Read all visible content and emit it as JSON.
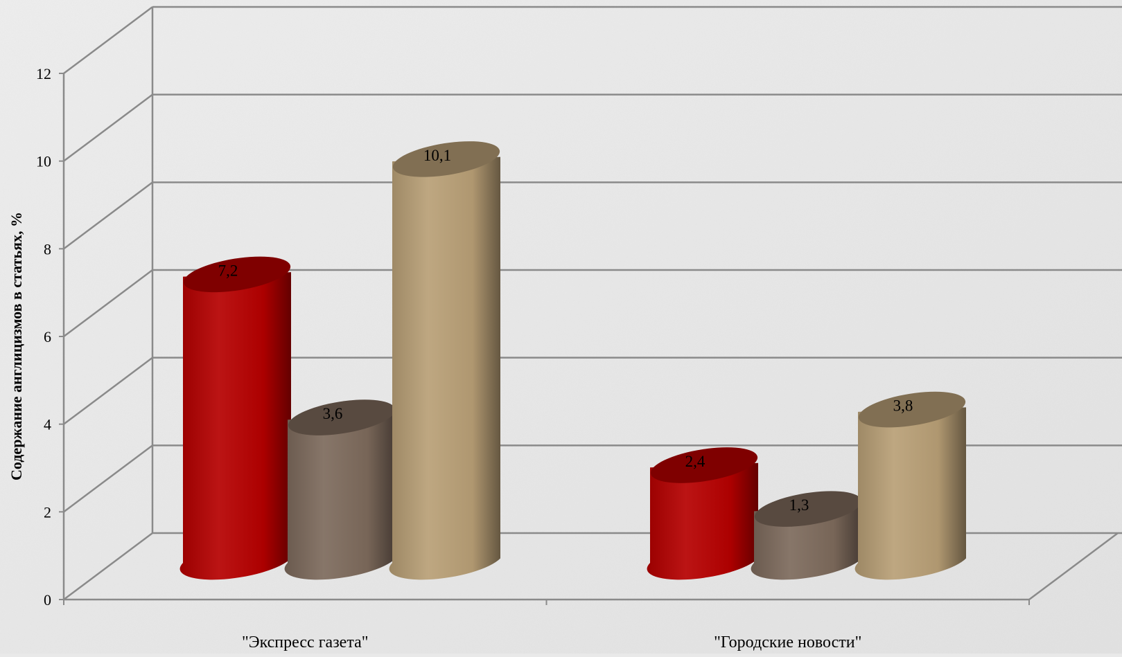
{
  "chart_data": {
    "type": "bar",
    "style": "3d-cylinder",
    "categories": [
      "\"Экспресс газета\"",
      "\"Городские новости\""
    ],
    "series": [
      {
        "values": [
          7.2,
          2.4
        ],
        "color": "#b50000"
      },
      {
        "values": [
          3.6,
          1.3
        ],
        "color": "#7d6a5c"
      },
      {
        "values": [
          10.1,
          3.8
        ],
        "color": "#b89f76"
      }
    ],
    "data_labels": [
      [
        "7,2",
        "3,6",
        "10,1"
      ],
      [
        "2,4",
        "1,3",
        "3,8"
      ]
    ],
    "ylabel": "Содержание англицизмов в статьях, %",
    "xlabel": "",
    "ylim": [
      0,
      12
    ],
    "yticks": [
      0,
      2,
      4,
      6,
      8,
      10,
      12
    ],
    "grid": true,
    "legend": "none"
  }
}
